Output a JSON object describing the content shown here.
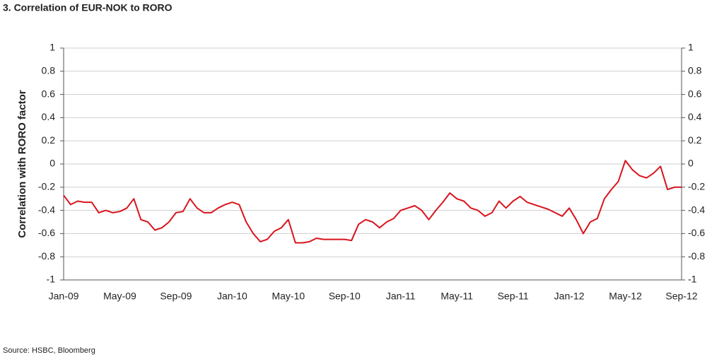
{
  "chart_data": {
    "type": "line",
    "title": "3. Correlation of EUR-NOK to RORO",
    "y_label": "Correlation with RORO factor",
    "source": "Source: HSBC, Bloomberg",
    "categories": [
      "Jan-09",
      null,
      null,
      null,
      null,
      null,
      null,
      null,
      "May-09",
      null,
      null,
      null,
      null,
      null,
      null,
      null,
      "Sep-09",
      null,
      null,
      null,
      null,
      null,
      null,
      null,
      "Jan-10",
      null,
      null,
      null,
      null,
      null,
      null,
      null,
      "May-10",
      null,
      null,
      null,
      null,
      null,
      null,
      null,
      "Sep-10",
      null,
      null,
      null,
      null,
      null,
      null,
      null,
      "Jan-11",
      null,
      null,
      null,
      null,
      null,
      null,
      null,
      "May-11",
      null,
      null,
      null,
      null,
      null,
      null,
      null,
      "Sep-11",
      null,
      null,
      null,
      null,
      null,
      null,
      null,
      "Jan-12",
      null,
      null,
      null,
      null,
      null,
      null,
      null,
      "May-12",
      null,
      null,
      null,
      null,
      null,
      null,
      null,
      "Sep-12"
    ],
    "series": [
      {
        "name": "Correlation",
        "color": "#d9141c",
        "values": [
          -0.27,
          -0.35,
          -0.32,
          -0.33,
          -0.33,
          -0.42,
          -0.4,
          -0.42,
          -0.41,
          -0.38,
          -0.3,
          -0.48,
          -0.5,
          -0.57,
          -0.55,
          -0.5,
          -0.42,
          -0.41,
          -0.3,
          -0.38,
          -0.42,
          -0.42,
          -0.38,
          -0.35,
          -0.33,
          -0.35,
          -0.5,
          -0.6,
          -0.67,
          -0.65,
          -0.58,
          -0.55,
          -0.48,
          -0.68,
          -0.68,
          -0.67,
          -0.64,
          -0.65,
          -0.65,
          -0.65,
          -0.65,
          -0.66,
          -0.52,
          -0.48,
          -0.5,
          -0.55,
          -0.5,
          -0.47,
          -0.4,
          -0.38,
          -0.36,
          -0.4,
          -0.48,
          -0.4,
          -0.33,
          -0.25,
          -0.3,
          -0.32,
          -0.38,
          -0.4,
          -0.45,
          -0.42,
          -0.32,
          -0.38,
          -0.32,
          -0.28,
          -0.33,
          -0.35,
          -0.37,
          -0.39,
          -0.42,
          -0.45,
          -0.38,
          -0.48,
          -0.6,
          -0.5,
          -0.47,
          -0.3,
          -0.22,
          -0.15,
          0.03,
          -0.05,
          -0.1,
          -0.12,
          -0.08,
          -0.02,
          -0.22,
          -0.2,
          -0.2
        ]
      }
    ],
    "ylim": [
      -1,
      1
    ],
    "yticks": [
      -1,
      -0.8,
      -0.6,
      -0.4,
      -0.2,
      0,
      0.2,
      0.4,
      0.6,
      0.8,
      1
    ],
    "y2lim": [
      -1,
      1
    ],
    "y2ticks": [
      -1,
      -0.8,
      -0.6,
      -0.4,
      -0.2,
      0,
      0.2,
      0.4,
      0.6,
      0.8,
      1
    ],
    "grid": true
  }
}
